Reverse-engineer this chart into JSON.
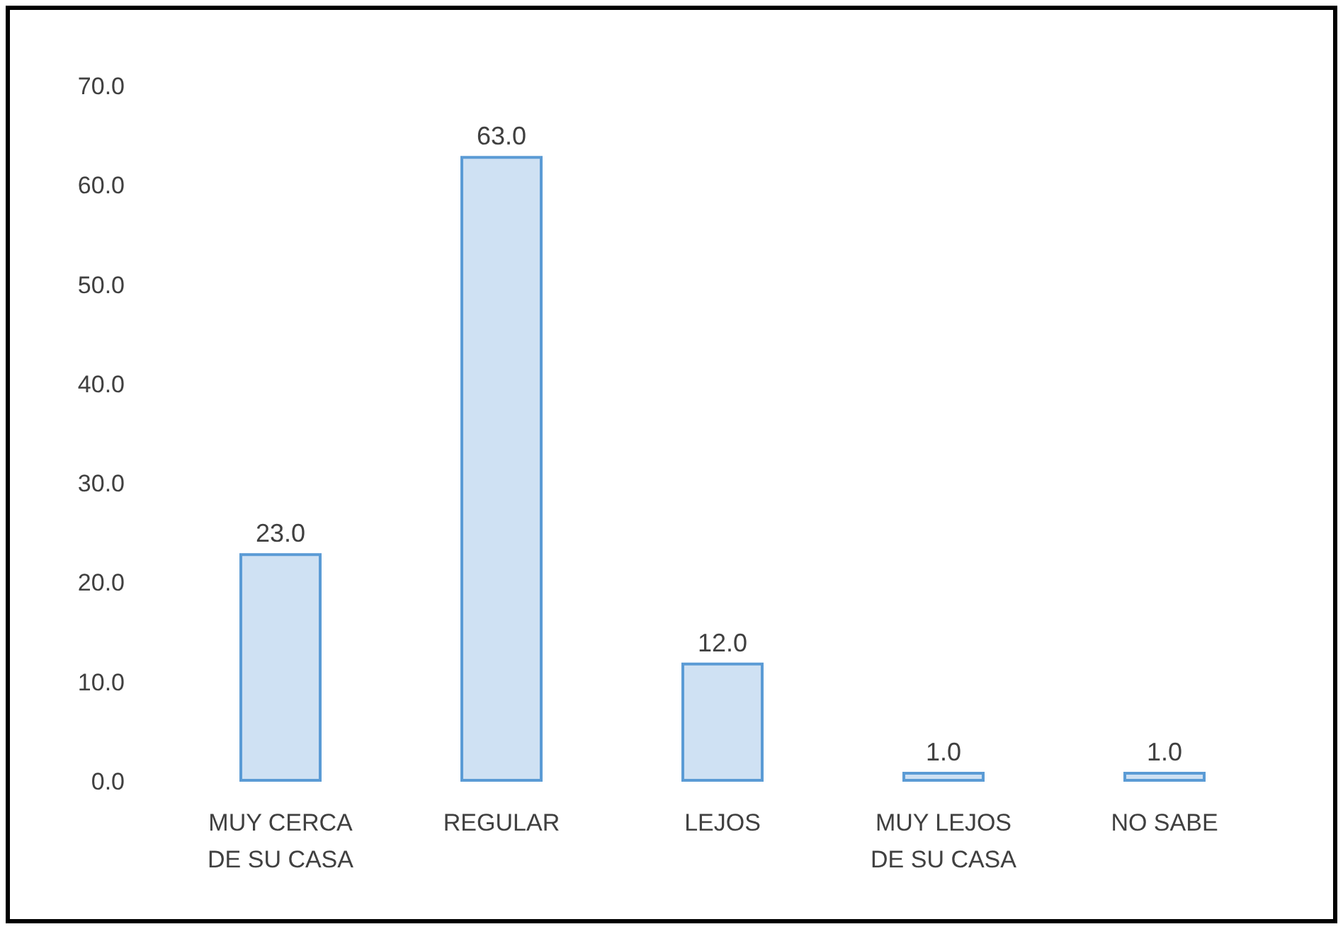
{
  "chart_data": {
    "type": "bar",
    "categories": [
      "MUY CERCA\nDE SU CASA",
      "REGULAR",
      "LEJOS",
      "MUY LEJOS\nDE SU CASA",
      "NO SABE"
    ],
    "values": [
      23,
      63,
      12,
      1,
      1
    ],
    "value_labels": [
      "23.0",
      "63.0",
      "12.0",
      "1.0",
      "1.0"
    ],
    "color": "#cfe1f3",
    "ylim": [
      0,
      70
    ],
    "yticks": [
      {
        "value": 0,
        "label": "0.0"
      },
      {
        "value": 10,
        "label": "10.0"
      },
      {
        "value": 20,
        "label": "20.0"
      },
      {
        "value": 30,
        "label": "30.0"
      },
      {
        "value": 40,
        "label": "40.0"
      },
      {
        "value": 50,
        "label": "50.0"
      },
      {
        "value": 60,
        "label": "60.0"
      },
      {
        "value": 70,
        "label": "70.0"
      }
    ],
    "grid": false
  }
}
